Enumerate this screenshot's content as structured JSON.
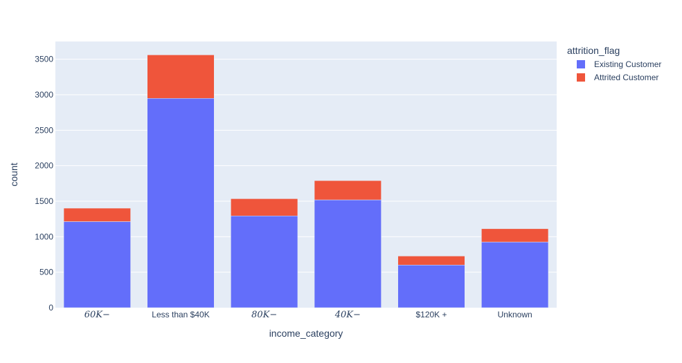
{
  "chart_data": {
    "type": "bar",
    "barmode": "stack",
    "categories": [
      "60K−",
      "Less than $40K",
      "80K−",
      "40K−",
      "$120K +",
      "Unknown"
    ],
    "series": [
      {
        "name": "Existing Customer",
        "color": "#636efa",
        "values": [
          1213,
          2949,
          1293,
          1519,
          601,
          925
        ]
      },
      {
        "name": "Attrited Customer",
        "color": "#ef553b",
        "values": [
          189,
          612,
          242,
          271,
          126,
          187
        ]
      }
    ],
    "xlabel": "income_category",
    "ylabel": "count",
    "ylim": [
      0,
      3750
    ],
    "yticks": [
      0,
      500,
      1000,
      1500,
      2000,
      2500,
      3000,
      3500
    ],
    "grid": true,
    "legend": {
      "title": "attrition_flag",
      "placement": "top-right"
    },
    "plot_background": "#e5ecf6"
  }
}
